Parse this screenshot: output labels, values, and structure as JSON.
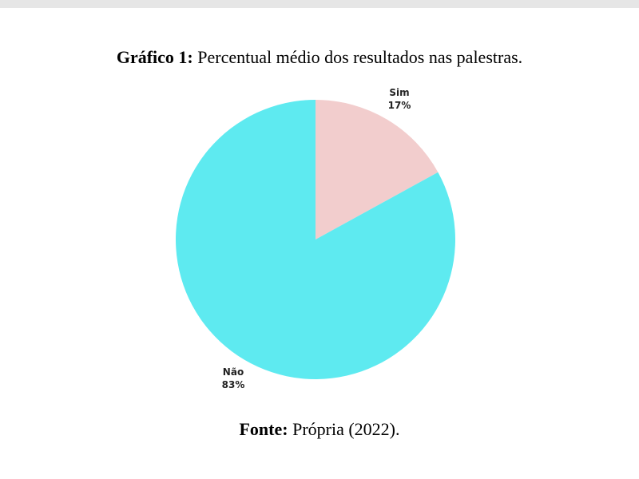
{
  "header": {
    "title_prefix": "Gráfico 1:",
    "title_text": " Percentual médio dos resultados nas palestras."
  },
  "footer": {
    "source_prefix": "Fonte:",
    "source_text": " Própria (2022)."
  },
  "colors": {
    "sim": "#f2cdcd",
    "nao": "#5eeaf0"
  },
  "chart_data": {
    "type": "pie",
    "title": "Gráfico 1: Percentual médio dos resultados nas palestras.",
    "categories": [
      "Sim",
      "Não"
    ],
    "values": [
      17,
      83
    ],
    "labels": [
      {
        "name": "Sim",
        "percent": "17%"
      },
      {
        "name": "Não",
        "percent": "83%"
      }
    ],
    "legend": "none"
  }
}
